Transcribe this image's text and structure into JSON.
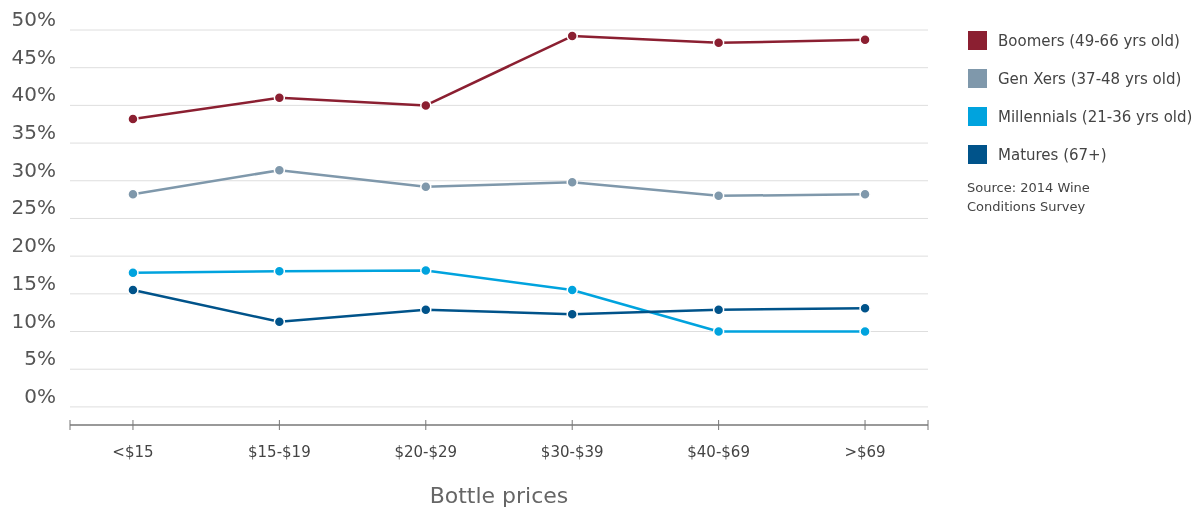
{
  "chart_data": {
    "type": "line",
    "xlabel": "Bottle prices",
    "categories": [
      "<$15",
      "$15-$19",
      "$20-$29",
      "$30-$39",
      "$40-$69",
      ">$69"
    ],
    "series": [
      {
        "name": "Boomers (49-66 yrs old)",
        "color": "#8b1f31",
        "values": [
          38.2,
          41.0,
          40.0,
          49.2,
          48.3,
          48.7
        ]
      },
      {
        "name": "Gen Xers (37-48 yrs old)",
        "color": "#7f98ab",
        "values": [
          28.2,
          31.4,
          29.2,
          29.8,
          28.0,
          28.2
        ]
      },
      {
        "name": "Millennials (21-36 yrs old)",
        "color": "#00a3de",
        "values": [
          17.8,
          18.0,
          18.1,
          15.5,
          10.0,
          10.0
        ]
      },
      {
        "name": "Matures (67+)",
        "color": "#00538a",
        "values": [
          15.5,
          11.3,
          12.9,
          12.3,
          12.9,
          13.1
        ]
      }
    ],
    "ylim": [
      -2.4,
      50
    ],
    "yticks": [
      {
        "value": 0,
        "label": "0%"
      },
      {
        "value": 5,
        "label": "5%"
      },
      {
        "value": 10,
        "label": "10%"
      },
      {
        "value": 15,
        "label": "15%"
      },
      {
        "value": 20,
        "label": "20%"
      },
      {
        "value": 25,
        "label": "25%"
      },
      {
        "value": 30,
        "label": "30%"
      },
      {
        "value": 35,
        "label": "35%"
      },
      {
        "value": 40,
        "label": "40%"
      },
      {
        "value": 45,
        "label": "45%"
      },
      {
        "value": 50,
        "label": "50%"
      }
    ],
    "grid": "y",
    "legend": "right",
    "marker": "circle",
    "line_style": "solid",
    "annotations": [
      "Source: 2014 Wine Conditions Survey"
    ]
  }
}
